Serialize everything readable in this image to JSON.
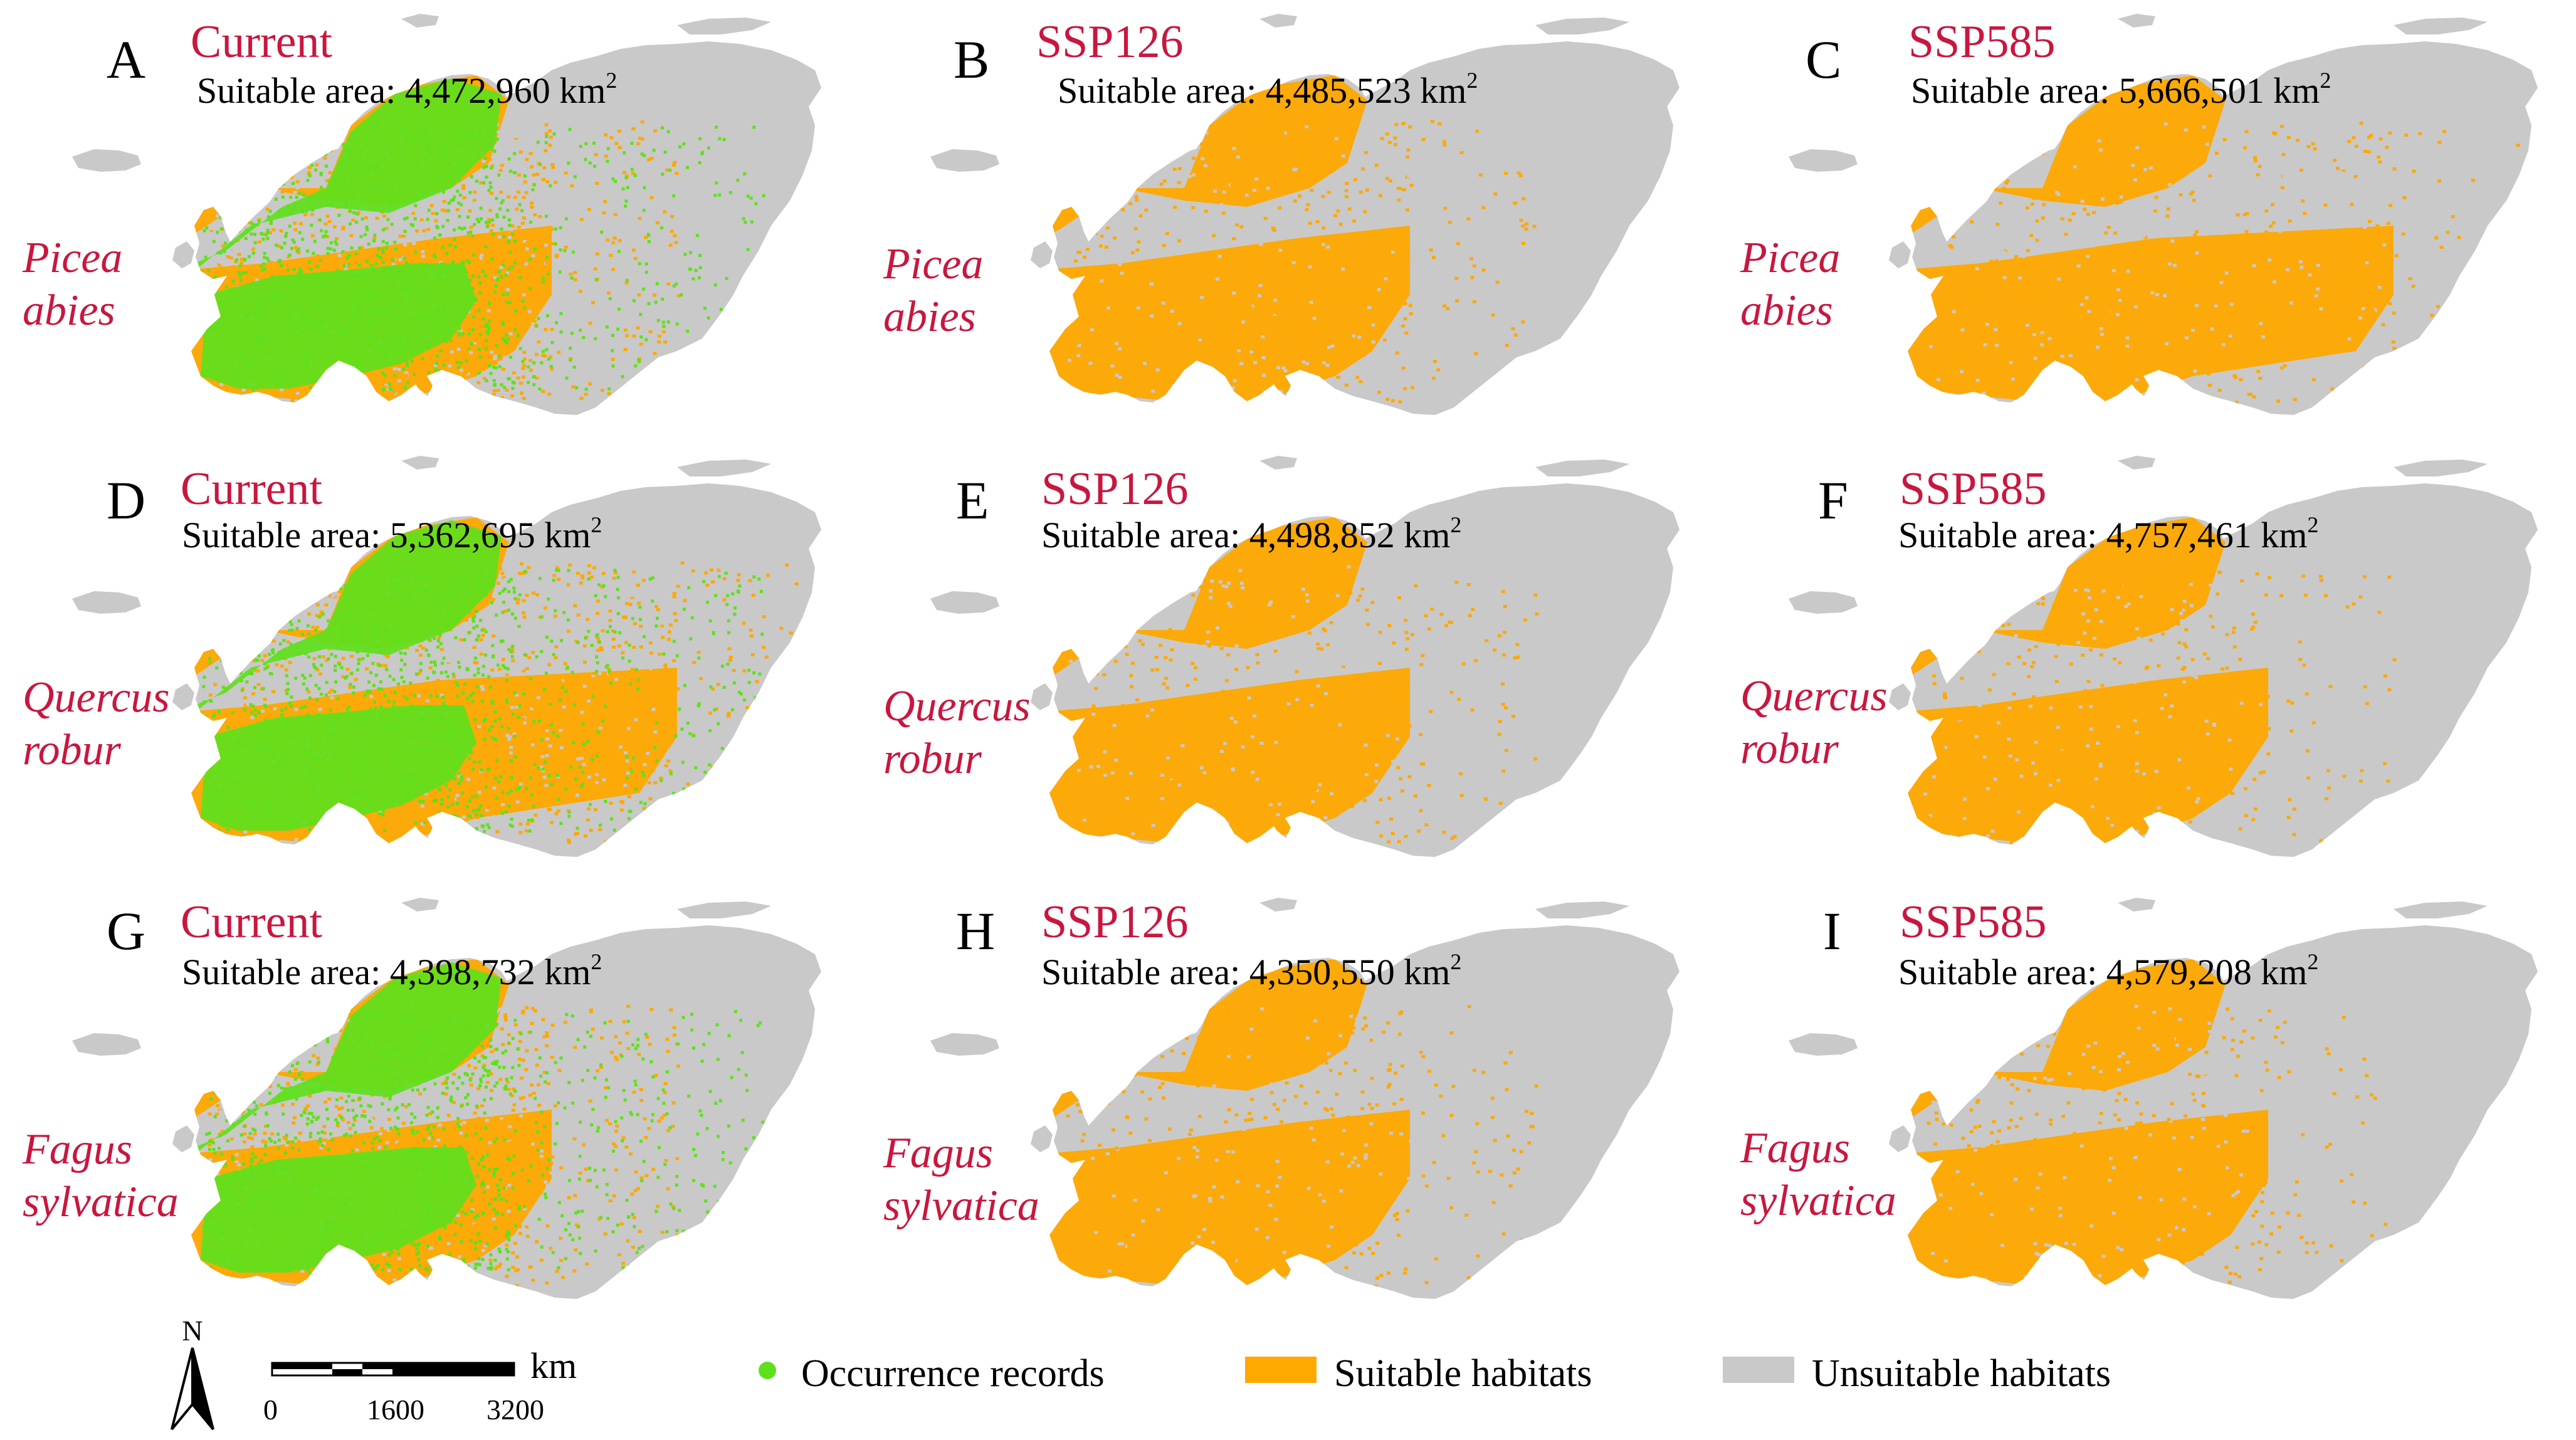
{
  "colors": {
    "scenario_text": "#c8173f",
    "occurrence": "#5ee11c",
    "suitable": "#ffa800",
    "unsuitable": "#c9c9c9"
  },
  "panels": [
    {
      "letter": "A",
      "scenario": "Current",
      "area_label": "Suitable area: ",
      "area_value": "4,472,960",
      "unit": "km",
      "unit_sup": "2",
      "species_line1": "Picea",
      "species_line2": "abies",
      "occurrences": true,
      "suitable_level": 1
    },
    {
      "letter": "B",
      "scenario": "SSP126",
      "area_label": "Suitable area: ",
      "area_value": "4,485,523",
      "unit": "km",
      "unit_sup": "2",
      "species_line1": "Picea",
      "species_line2": "abies",
      "occurrences": false,
      "suitable_level": 1
    },
    {
      "letter": "C",
      "scenario": "SSP585",
      "area_label": "Suitable area: ",
      "area_value": "5,666,501",
      "unit": "km",
      "unit_sup": "2",
      "species_line1": "Picea",
      "species_line2": "abies",
      "occurrences": false,
      "suitable_level": 2
    },
    {
      "letter": "D",
      "scenario": "Current",
      "area_label": "Suitable area: ",
      "area_value": "5,362,695",
      "unit": "km",
      "unit_sup": "2",
      "species_line1": "Quercus",
      "species_line2": "robur",
      "occurrences": true,
      "suitable_level": 2
    },
    {
      "letter": "E",
      "scenario": "SSP126",
      "area_label": "Suitable area: ",
      "area_value": "4,498,852",
      "unit": "km",
      "unit_sup": "2",
      "species_line1": "Quercus",
      "species_line2": "robur",
      "occurrences": false,
      "suitable_level": 1
    },
    {
      "letter": "F",
      "scenario": "SSP585",
      "area_label": "Suitable area: ",
      "area_value": "4,757,461",
      "unit": "km",
      "unit_sup": "2",
      "species_line1": "Quercus",
      "species_line2": "robur",
      "occurrences": false,
      "suitable_level": 1
    },
    {
      "letter": "G",
      "scenario": "Current",
      "area_label": "Suitable area: ",
      "area_value": "4,398,732",
      "unit": "km",
      "unit_sup": "2",
      "species_line1": "Fagus",
      "species_line2": "sylvatica",
      "occurrences": true,
      "suitable_level": 1
    },
    {
      "letter": "H",
      "scenario": "SSP126",
      "area_label": "Suitable area: ",
      "area_value": "4,350,550",
      "unit": "km",
      "unit_sup": "2",
      "species_line1": "Fagus",
      "species_line2": "sylvatica",
      "occurrences": false,
      "suitable_level": 1
    },
    {
      "letter": "I",
      "scenario": "SSP585",
      "area_label": "Suitable area: ",
      "area_value": "4,579,208",
      "unit": "km",
      "unit_sup": "2",
      "species_line1": "Fagus",
      "species_line2": "sylvatica",
      "occurrences": false,
      "suitable_level": 1
    }
  ],
  "legend": {
    "occurrence_label": "Occurrence records",
    "suitable_label": "Suitable habitats",
    "unsuitable_label": "Unsuitable habitats"
  },
  "scale_bar": {
    "unit": "km",
    "ticks": [
      "0",
      "1600",
      "3200"
    ]
  },
  "north_label": "N"
}
